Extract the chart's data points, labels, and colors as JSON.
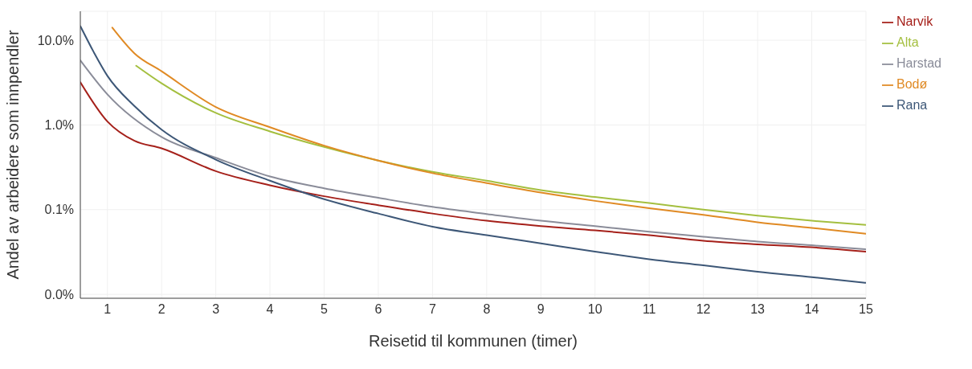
{
  "chart_data": {
    "type": "line",
    "xlabel": "Reisetid til kommunen (timer)",
    "ylabel": "Andel av arbeidere som innpendler",
    "log": "y",
    "grid": true,
    "legend": "top right",
    "xlim": [
      0.5,
      15
    ],
    "xticks": [
      1,
      2,
      3,
      4,
      5,
      6,
      7,
      8,
      9,
      10,
      11,
      12,
      13,
      14,
      15
    ],
    "ylim": [
      0.009,
      22
    ],
    "yticks": [
      {
        "value": 0.01,
        "label": "0.0%"
      },
      {
        "value": 0.1,
        "label": "0.1%"
      },
      {
        "value": 1,
        "label": "1.0%"
      },
      {
        "value": 10,
        "label": "10.0%"
      }
    ],
    "series": [
      {
        "name": "Narvik",
        "color": "#a5201a",
        "x": [
          0.5,
          1,
          1.5,
          2,
          3,
          4,
          5,
          6,
          7,
          8,
          9,
          10,
          11,
          12,
          13,
          14,
          15
        ],
        "values": [
          3.2,
          1.1,
          0.65,
          0.53,
          0.285,
          0.194,
          0.144,
          0.113,
          0.09,
          0.074,
          0.064,
          0.057,
          0.05,
          0.043,
          0.039,
          0.036,
          0.032
        ]
      },
      {
        "name": "Alta",
        "color": "#a4bf3f",
        "x": [
          1.53,
          2,
          3,
          4,
          5,
          6,
          7,
          8,
          9,
          10,
          11,
          12,
          13,
          14,
          15
        ],
        "values": [
          5.0,
          3.1,
          1.39,
          0.84,
          0.55,
          0.38,
          0.28,
          0.22,
          0.17,
          0.141,
          0.12,
          0.1,
          0.085,
          0.074,
          0.066
        ]
      },
      {
        "name": "Harstad",
        "color": "#8a8c99",
        "x": [
          0.5,
          1,
          2,
          3,
          4,
          5,
          6,
          7,
          8,
          9,
          10,
          11,
          12,
          13,
          14,
          15
        ],
        "values": [
          5.8,
          2.3,
          0.72,
          0.41,
          0.247,
          0.179,
          0.138,
          0.108,
          0.089,
          0.074,
          0.064,
          0.055,
          0.048,
          0.042,
          0.038,
          0.034
        ]
      },
      {
        "name": "Bodø",
        "color": "#e08a24",
        "x": [
          1.09,
          1.5,
          2,
          3,
          4,
          5,
          6,
          7,
          8,
          9,
          10,
          11,
          12,
          13,
          14,
          15
        ],
        "values": [
          14.1,
          7.0,
          4.3,
          1.63,
          0.94,
          0.57,
          0.38,
          0.27,
          0.206,
          0.159,
          0.127,
          0.104,
          0.087,
          0.071,
          0.061,
          0.052
        ]
      },
      {
        "name": "Rana",
        "color": "#3d5777",
        "x": [
          0.5,
          0.75,
          1,
          1.5,
          2,
          3,
          4,
          5,
          6,
          7,
          8,
          9,
          10,
          11,
          12,
          13,
          14,
          15
        ],
        "values": [
          14.7,
          7.2,
          3.8,
          1.67,
          0.88,
          0.39,
          0.22,
          0.133,
          0.09,
          0.063,
          0.05,
          0.04,
          0.032,
          0.026,
          0.022,
          0.0185,
          0.016,
          0.0137
        ]
      }
    ]
  }
}
